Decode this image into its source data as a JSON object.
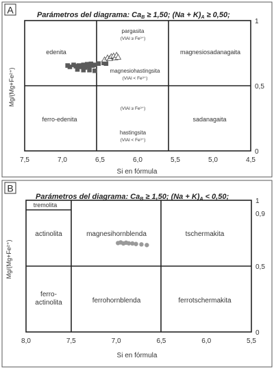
{
  "chart_data": [
    {
      "type": "scatter",
      "panel_label": "A",
      "title": "Parámetros del diagrama: Ca",
      "title_sub": "B",
      "title_mid": " ≥ 1,50; (Na + K)",
      "title_sub2": "A",
      "title_end": " ≥ 0,50;",
      "xlabel": "Si en fórmula",
      "ylabel": "Mg/(Mg+Fe²⁺)",
      "xlim": [
        7.5,
        4.5
      ],
      "ylim": [
        0,
        1
      ],
      "x_ticks": [
        "7,5",
        "7,0",
        "6,5",
        "6,0",
        "5,5",
        "5,0",
        "4,5"
      ],
      "y_ticks": [
        "1",
        "0,5",
        "0"
      ],
      "fields": {
        "edenita": "edenita",
        "pargasita": "pargasita",
        "pargasita_cond": "(VIAl ≥ Fe³⁺)",
        "magnesiohastingsita": "magnesiohastingsita",
        "magnesiohastingsita_cond": "(VIAl < Fe³⁺)",
        "magnesiosadanagaita": "magnesiosadanagaita",
        "ferro_edenita": "ferro-edenita",
        "ferropargasita_cond": "(VIAl ≥ Fe³⁺)",
        "hastingsita": "hastingsita",
        "hastingsita_cond": "(VIAl < Fe³⁺)",
        "sadanagaita": "sadanagaita"
      },
      "series": [
        {
          "marker": "square",
          "color": "#5a5a5a",
          "points": [
            [
              6.93,
              0.655
            ],
            [
              6.9,
              0.645
            ],
            [
              6.85,
              0.66
            ],
            [
              6.82,
              0.65
            ],
            [
              6.78,
              0.655
            ],
            [
              6.75,
              0.645
            ],
            [
              6.72,
              0.66
            ],
            [
              6.7,
              0.64
            ],
            [
              6.67,
              0.665
            ],
            [
              6.65,
              0.65
            ],
            [
              6.62,
              0.668
            ],
            [
              6.6,
              0.655
            ],
            [
              6.8,
              0.625
            ],
            [
              6.72,
              0.62
            ],
            [
              6.64,
              0.62
            ],
            [
              6.57,
              0.615
            ],
            [
              6.57,
              0.66
            ],
            [
              6.52,
              0.67
            ],
            [
              6.45,
              0.675
            ],
            [
              6.42,
              0.67
            ]
          ]
        },
        {
          "marker": "triangle",
          "color": "#5a5a5a",
          "points": [
            [
              6.44,
              0.7
            ],
            [
              6.4,
              0.715
            ],
            [
              6.37,
              0.71
            ],
            [
              6.35,
              0.725
            ],
            [
              6.32,
              0.73
            ],
            [
              6.3,
              0.715
            ],
            [
              6.28,
              0.735
            ],
            [
              6.26,
              0.72
            ]
          ]
        }
      ]
    },
    {
      "type": "scatter",
      "panel_label": "B",
      "title": "Parámetros del diagrama: Ca",
      "title_sub": "B",
      "title_mid": " ≥ 1,50; (Na + K)",
      "title_sub2": "A",
      "title_end": " < 0,50;",
      "xlabel": "Si en fórmula",
      "ylabel": "Mg/(Mg+Fe²⁺)",
      "xlim": [
        8.0,
        5.5
      ],
      "ylim": [
        0,
        1
      ],
      "x_ticks": [
        "8,0",
        "7,5",
        "7,0",
        "6,5",
        "6,0",
        "5,5"
      ],
      "y_ticks": [
        "1",
        "0,9",
        "0,5",
        "0"
      ],
      "fields": {
        "tremolita": "tremolita",
        "actinolita": "actinolita",
        "magnesiohornblenda": "magnesihornblenda",
        "tschermakita": "tschermakita",
        "ferro_actinolita_1": "ferro-",
        "ferro_actinolita_2": "actinolita",
        "ferrohornblenda": "ferrohornblenda",
        "ferrotschermakita": "ferrotschermakita"
      },
      "series": [
        {
          "marker": "circle",
          "color": "#9a9a9a",
          "points": [
            [
              6.98,
              0.675
            ],
            [
              6.95,
              0.68
            ],
            [
              6.92,
              0.672
            ],
            [
              6.89,
              0.678
            ],
            [
              6.86,
              0.673
            ],
            [
              6.82,
              0.672
            ],
            [
              6.78,
              0.668
            ],
            [
              6.72,
              0.665
            ],
            [
              6.66,
              0.66
            ]
          ]
        }
      ]
    }
  ]
}
